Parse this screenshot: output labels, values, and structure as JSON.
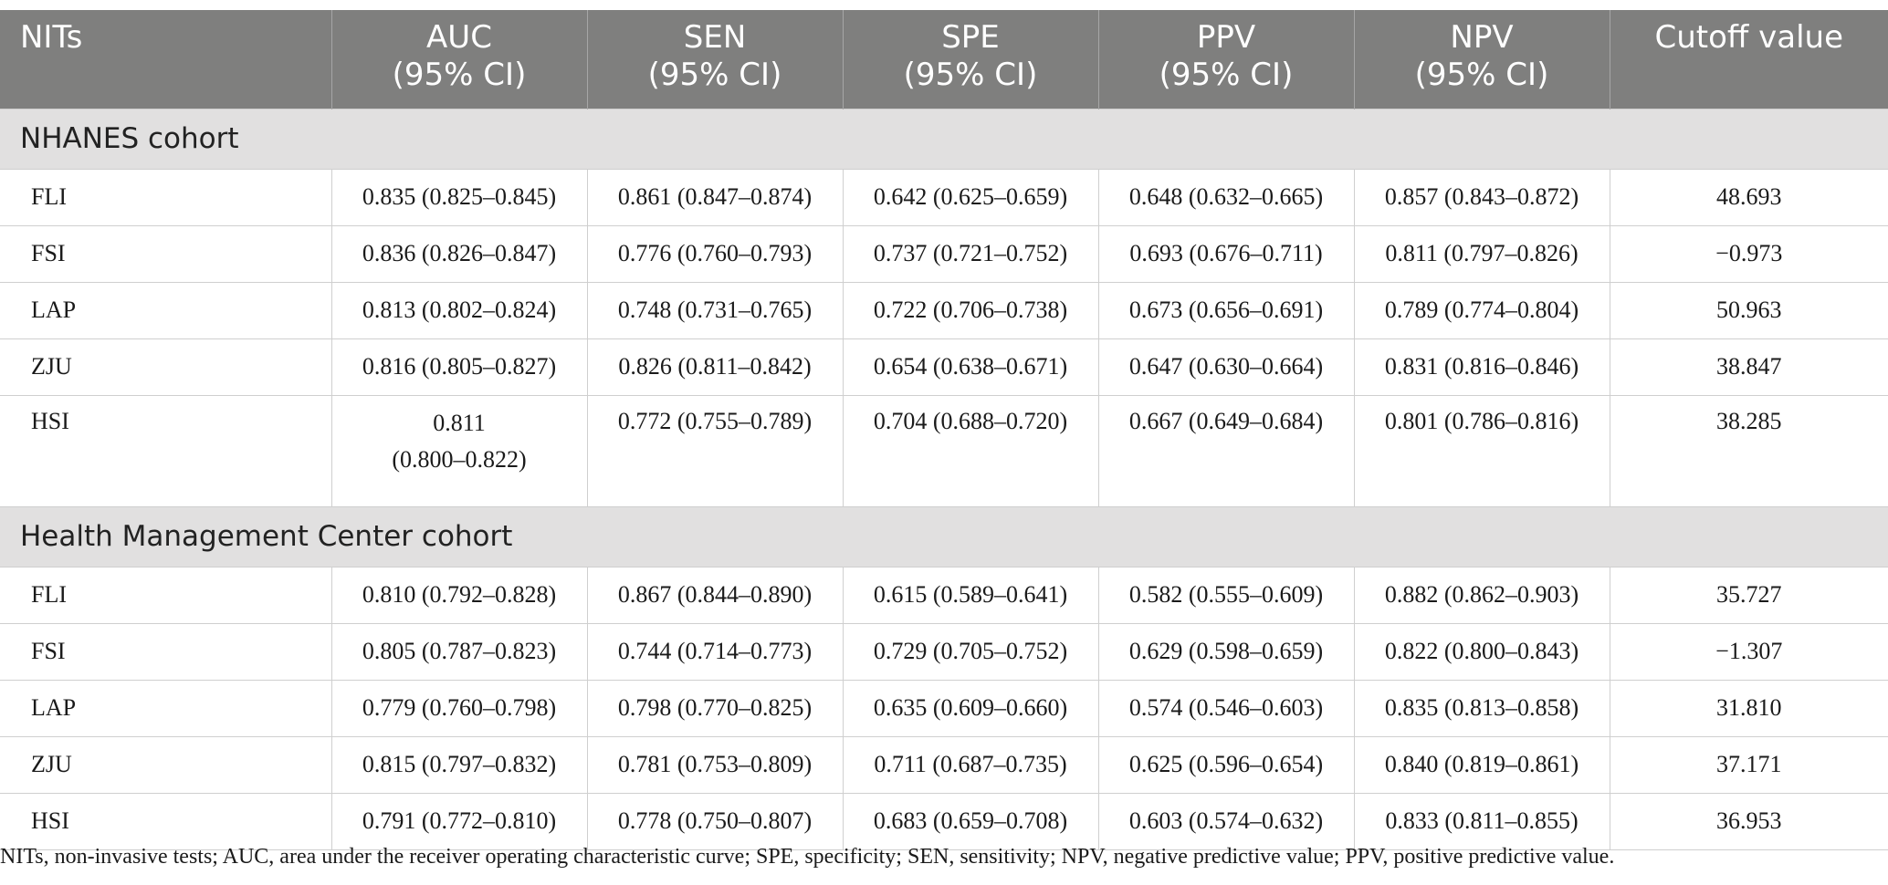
{
  "table": {
    "headers": [
      {
        "line1": "NITs",
        "line2": ""
      },
      {
        "line1": "AUC",
        "line2": "(95% CI)"
      },
      {
        "line1": "SEN",
        "line2": "(95% CI)"
      },
      {
        "line1": "SPE",
        "line2": "(95% CI)"
      },
      {
        "line1": "PPV",
        "line2": "(95% CI)"
      },
      {
        "line1": "NPV",
        "line2": "(95% CI)"
      },
      {
        "line1": "Cutoff value",
        "line2": ""
      }
    ],
    "sections": [
      {
        "title": "NHANES cohort",
        "rows": [
          {
            "name": "FLI",
            "auc": "0.835 (0.825–0.845)",
            "sen": "0.861 (0.847–0.874)",
            "spe": "0.642 (0.625–0.659)",
            "ppv": "0.648 (0.632–0.665)",
            "npv": "0.857 (0.843–0.872)",
            "cutoff": "48.693"
          },
          {
            "name": "FSI",
            "auc": "0.836 (0.826–0.847)",
            "sen": "0.776 (0.760–0.793)",
            "spe": "0.737 (0.721–0.752)",
            "ppv": "0.693 (0.676–0.711)",
            "npv": "0.811 (0.797–0.826)",
            "cutoff": "−0.973"
          },
          {
            "name": "LAP",
            "auc": "0.813 (0.802–0.824)",
            "sen": "0.748 (0.731–0.765)",
            "spe": "0.722 (0.706–0.738)",
            "ppv": "0.673 (0.656–0.691)",
            "npv": "0.789 (0.774–0.804)",
            "cutoff": "50.963"
          },
          {
            "name": "ZJU",
            "auc": "0.816 (0.805–0.827)",
            "sen": "0.826 (0.811–0.842)",
            "spe": "0.654 (0.638–0.671)",
            "ppv": "0.647 (0.630–0.664)",
            "npv": "0.831 (0.816–0.846)",
            "cutoff": "38.847"
          },
          {
            "name": "HSI",
            "auc_line1": "0.811",
            "auc_line2": "(0.800–0.822)",
            "sen": "0.772 (0.755–0.789)",
            "spe": "0.704 (0.688–0.720)",
            "ppv": "0.667 (0.649–0.684)",
            "npv": "0.801 (0.786–0.816)",
            "cutoff": "38.285"
          }
        ]
      },
      {
        "title": "Health Management Center cohort",
        "rows": [
          {
            "name": "FLI",
            "auc": "0.810 (0.792–0.828)",
            "sen": "0.867 (0.844–0.890)",
            "spe": "0.615 (0.589–0.641)",
            "ppv": "0.582 (0.555–0.609)",
            "npv": "0.882 (0.862–0.903)",
            "cutoff": "35.727"
          },
          {
            "name": "FSI",
            "auc": "0.805 (0.787–0.823)",
            "sen": "0.744 (0.714–0.773)",
            "spe": "0.729 (0.705–0.752)",
            "ppv": "0.629 (0.598–0.659)",
            "npv": "0.822 (0.800–0.843)",
            "cutoff": "−1.307"
          },
          {
            "name": "LAP",
            "auc": "0.779 (0.760–0.798)",
            "sen": "0.798 (0.770–0.825)",
            "spe": "0.635 (0.609–0.660)",
            "ppv": "0.574 (0.546–0.603)",
            "npv": "0.835 (0.813–0.858)",
            "cutoff": "31.810"
          },
          {
            "name": "ZJU",
            "auc": "0.815 (0.797–0.832)",
            "sen": "0.781 (0.753–0.809)",
            "spe": "0.711 (0.687–0.735)",
            "ppv": "0.625 (0.596–0.654)",
            "npv": "0.840 (0.819–0.861)",
            "cutoff": "37.171"
          },
          {
            "name": "HSI",
            "auc": "0.791 (0.772–0.810)",
            "sen": "0.778 (0.750–0.807)",
            "spe": "0.683 (0.659–0.708)",
            "ppv": "0.603 (0.574–0.632)",
            "npv": "0.833 (0.811–0.855)",
            "cutoff": "36.953"
          }
        ]
      }
    ]
  },
  "footnote": "NITs, non-invasive tests; AUC, area under the receiver operating characteristic curve; SPE, specificity; SEN, sensitivity; NPV, negative predictive value; PPV, positive predictive value.",
  "colors": {
    "header_bg": "#7f7f7e",
    "section_bg": "#e1e0e0",
    "header_text": "#ffffff"
  }
}
